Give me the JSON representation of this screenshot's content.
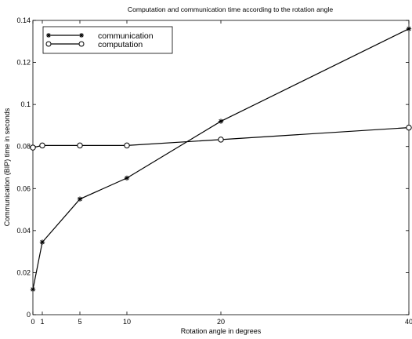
{
  "chart_data": {
    "type": "line",
    "title": "Computation and communication time according to the rotation angle",
    "xlabel": "Rotation angle in degrees",
    "ylabel": "Communication (BIP) time in seconds",
    "xlim": [
      0,
      40
    ],
    "ylim": [
      0,
      0.14
    ],
    "x": [
      0,
      1,
      5,
      10,
      20,
      40
    ],
    "x_ticks": [
      0,
      1,
      5,
      10,
      20,
      40
    ],
    "x_tick_labels": [
      "0",
      "1",
      "5",
      "10",
      "20",
      "40"
    ],
    "y_ticks": [
      0,
      0.02,
      0.04,
      0.06,
      0.08,
      0.1,
      0.12,
      0.14
    ],
    "y_tick_labels": [
      "0",
      "0.02",
      "0.04",
      "0.06",
      "0.08",
      "0.1",
      "0.12",
      "0.14"
    ],
    "grid": false,
    "legend_position": "top-left",
    "series": [
      {
        "name": "communication",
        "marker": "star",
        "color": "#000000",
        "values": [
          0.012,
          0.0345,
          0.055,
          0.065,
          0.092,
          0.136
        ]
      },
      {
        "name": "computation",
        "marker": "circle",
        "color": "#000000",
        "values": [
          0.0795,
          0.0805,
          0.0805,
          0.0805,
          0.0833,
          0.089
        ]
      }
    ]
  }
}
